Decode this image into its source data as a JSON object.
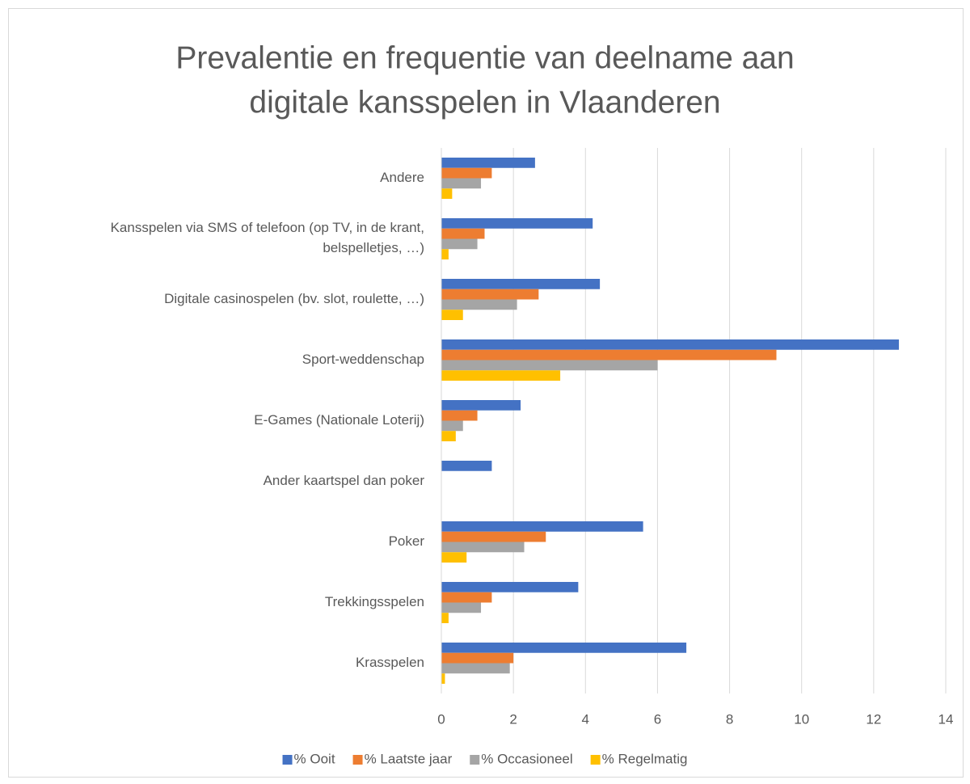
{
  "chart_data": {
    "type": "bar",
    "orientation": "horizontal",
    "title": "Prevalentie en frequentie van deelname aan digitale kansspelen in Vlaanderen",
    "categories": [
      "Andere",
      "Kansspelen via SMS of telefoon (op TV, in de krant, belspelletjes, …)",
      "Digitale casinospelen (bv. slot, roulette, …)",
      "Sport-weddenschap",
      "E-Games (Nationale Loterij)",
      "Ander kaartspel dan poker",
      "Poker",
      "Trekkingsspelen",
      "Krasspelen"
    ],
    "series": [
      {
        "name": "% Ooit",
        "color": "#4472c4",
        "values": [
          2.6,
          4.2,
          4.4,
          12.7,
          2.2,
          1.4,
          5.6,
          3.8,
          6.8
        ]
      },
      {
        "name": "% Laatste jaar",
        "color": "#ed7d31",
        "values": [
          1.4,
          1.2,
          2.7,
          9.3,
          1.0,
          null,
          2.9,
          1.4,
          2.0
        ]
      },
      {
        "name": "% Occasioneel",
        "color": "#a5a5a5",
        "values": [
          1.1,
          1.0,
          2.1,
          6.0,
          0.6,
          null,
          2.3,
          1.1,
          1.9
        ]
      },
      {
        "name": "% Regelmatig",
        "color": "#ffc000",
        "values": [
          0.3,
          0.2,
          0.6,
          3.3,
          0.4,
          null,
          0.7,
          0.2,
          0.1
        ]
      }
    ],
    "xlim": [
      0,
      14
    ],
    "xticks": [
      0,
      2,
      4,
      6,
      8,
      10,
      12,
      14
    ],
    "grid": true,
    "legend": "bottom"
  }
}
